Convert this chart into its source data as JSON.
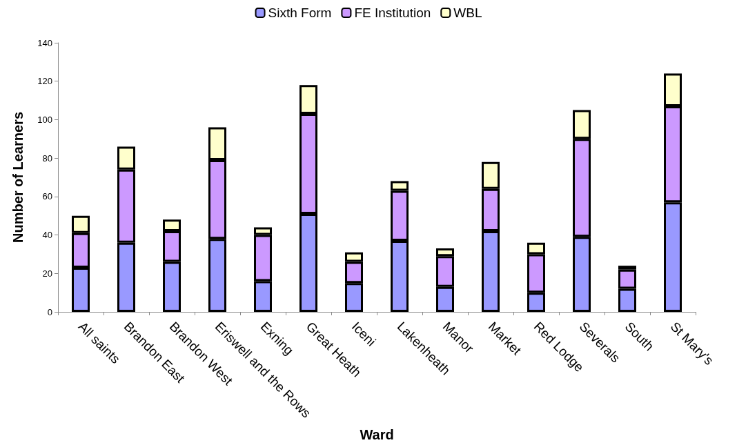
{
  "chart_data": {
    "type": "bar",
    "stacked": true,
    "xlabel": "Ward",
    "ylabel": "Number of Learners",
    "categories": [
      "All saints",
      "Brandon East",
      "Brandon West",
      "Eriswell and the Rows",
      "Exning",
      "Great Heath",
      "Iceni",
      "Lakenheath",
      "Manor",
      "Market",
      "Red Lodge",
      "Severals",
      "South",
      "St Mary's"
    ],
    "series": [
      {
        "name": "Sixth Form",
        "color": "#9999ff",
        "values": [
          23,
          36,
          26,
          38,
          16,
          51,
          15,
          37,
          13,
          42,
          10,
          39,
          12,
          57
        ]
      },
      {
        "name": "FE Institution",
        "color": "#cc99ff",
        "values": [
          18,
          38,
          16,
          41,
          24,
          52,
          11,
          26,
          16,
          22,
          20,
          51,
          10,
          50
        ]
      },
      {
        "name": "WBL",
        "color": "#ffffcc",
        "values": [
          9,
          12,
          6,
          17,
          4,
          15,
          5,
          5,
          4,
          14,
          6,
          15,
          2,
          17
        ]
      }
    ],
    "ylim": [
      0,
      140
    ],
    "yticks": [
      0,
      20,
      40,
      60,
      80,
      100,
      120,
      140
    ],
    "grid": false,
    "legend": "top"
  }
}
